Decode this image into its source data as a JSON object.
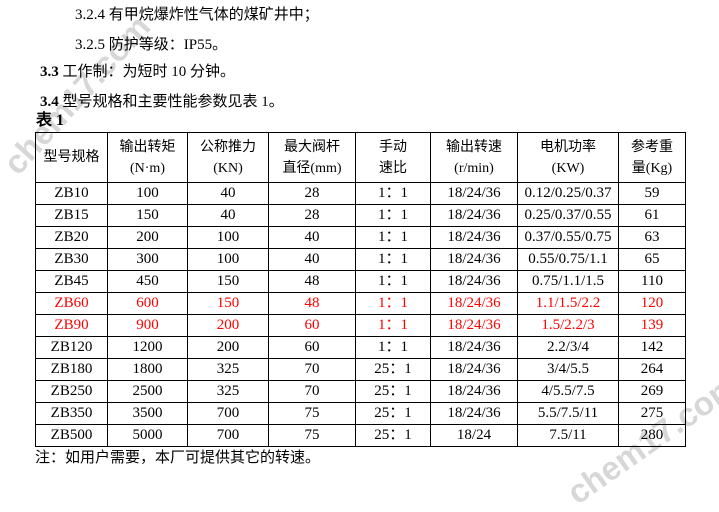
{
  "colors": {
    "text": "#000000",
    "highlight_red": "#ff0000",
    "watermark_gray": "#d7d7d7"
  },
  "intro": {
    "line_324": "3.2.4 有甲烷爆炸性气体的煤矿井中；",
    "line_325": "3.2.5 防护等级：IP55。",
    "line_33_num": "3.3",
    "line_33_text": "工作制：为短时 10 分钟。",
    "line_34_num": "3.4",
    "line_34_text": "型号规格和主要性能参数见表 1。"
  },
  "table": {
    "caption": "表 1",
    "headers": [
      {
        "line1": "型号规格",
        "line2": ""
      },
      {
        "line1": "输出转矩",
        "line2": "(N·m)"
      },
      {
        "line1": "公称推力",
        "line2": "(KN)"
      },
      {
        "line1": "最大阀杆",
        "line2": "直径(mm)"
      },
      {
        "line1": "手动",
        "line2": "速比"
      },
      {
        "line1": "输出转速",
        "line2": "(r/min)"
      },
      {
        "line1": "电机功率",
        "line2": "(KW)"
      },
      {
        "line1": "参考重",
        "line2": "量(Kg)"
      }
    ],
    "rows": [
      {
        "red": false,
        "cells": [
          "ZB10",
          "100",
          "40",
          "28",
          "1：1",
          "18/24/36",
          "0.12/0.25/0.37",
          "59"
        ]
      },
      {
        "red": false,
        "cells": [
          "ZB15",
          "150",
          "40",
          "28",
          "1：1",
          "18/24/36",
          "0.25/0.37/0.55",
          "61"
        ]
      },
      {
        "red": false,
        "cells": [
          "ZB20",
          "200",
          "100",
          "40",
          "1：1",
          "18/24/36",
          "0.37/0.55/0.75",
          "63"
        ]
      },
      {
        "red": false,
        "cells": [
          "ZB30",
          "300",
          "100",
          "40",
          "1：1",
          "18/24/36",
          "0.55/0.75/1.1",
          "65"
        ]
      },
      {
        "red": false,
        "cells": [
          "ZB45",
          "450",
          "150",
          "48",
          "1：1",
          "18/24/36",
          "0.75/1.1/1.5",
          "110"
        ]
      },
      {
        "red": true,
        "cells": [
          "ZB60",
          "600",
          "150",
          "48",
          "1：1",
          "18/24/36",
          "1.1/1.5/2.2",
          "120"
        ]
      },
      {
        "red": true,
        "cells": [
          "ZB90",
          "900",
          "200",
          "60",
          "1：1",
          "18/24/36",
          "1.5/2.2/3",
          "139"
        ]
      },
      {
        "red": false,
        "cells": [
          "ZB120",
          "1200",
          "200",
          "60",
          "1：1",
          "18/24/36",
          "2.2/3/4",
          "142"
        ]
      },
      {
        "red": false,
        "cells": [
          "ZB180",
          "1800",
          "325",
          "70",
          "25：1",
          "18/24/36",
          "3/4/5.5",
          "264"
        ]
      },
      {
        "red": false,
        "cells": [
          "ZB250",
          "2500",
          "325",
          "70",
          "25：1",
          "18/24/36",
          "4/5.5/7.5",
          "269"
        ]
      },
      {
        "red": false,
        "cells": [
          "ZB350",
          "3500",
          "700",
          "75",
          "25：1",
          "18/24/36",
          "5.5/7.5/11",
          "275"
        ]
      },
      {
        "red": false,
        "cells": [
          "ZB500",
          "5000",
          "700",
          "75",
          "25：1",
          "18/24",
          "7.5/11",
          "280"
        ]
      }
    ]
  },
  "note": "注：如用户需要，本厂可提供其它的转速。",
  "watermark": {
    "text": "chem17.com"
  }
}
